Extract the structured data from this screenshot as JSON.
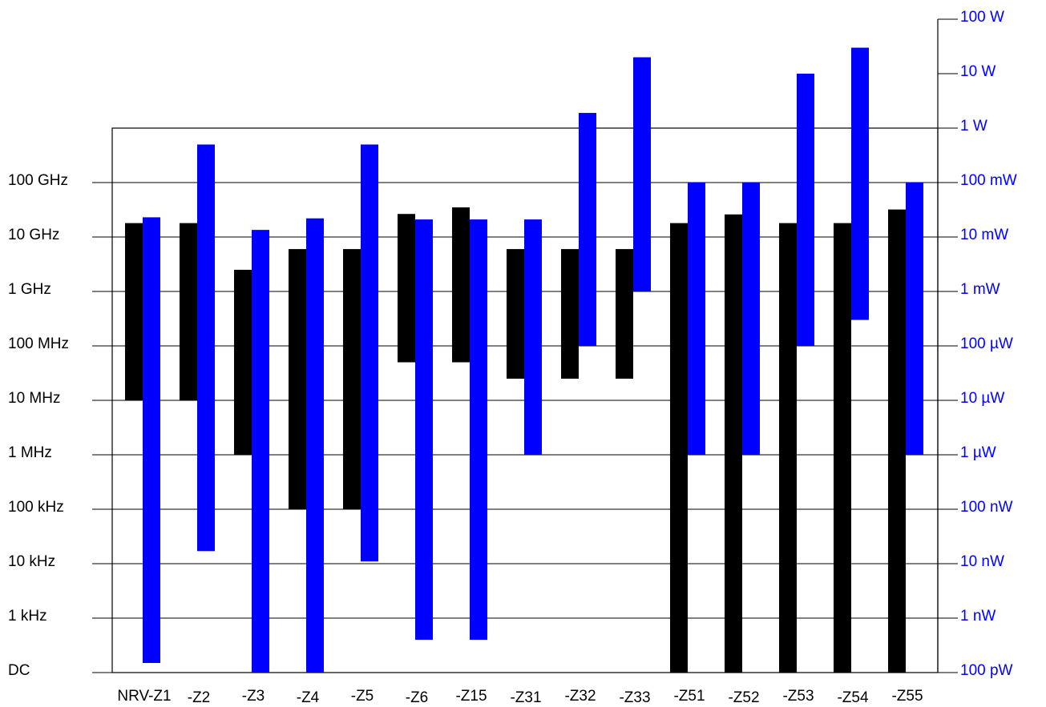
{
  "chart_data": {
    "type": "range-bar",
    "log_scale": true,
    "grid": true,
    "categories": [
      "NRV-Z1",
      "-Z2",
      "-Z3",
      "-Z4",
      "-Z5",
      "-Z6",
      "-Z15",
      "-Z31",
      "-Z32",
      "-Z33",
      "-Z51",
      "-Z52",
      "-Z53",
      "-Z54",
      "-Z55"
    ],
    "series": [
      {
        "color": "#000000",
        "values": [
          [
            10000000.0,
            18000000000.0
          ],
          [
            10000000.0,
            18000000000.0
          ],
          [
            1000000.0,
            2500000000.0
          ],
          [
            100000.0,
            6000000000.0
          ],
          [
            100000.0,
            6000000000.0
          ],
          [
            50000000.0,
            26500000000.0
          ],
          [
            50000000.0,
            35000000000.0
          ],
          [
            25000000.0,
            6000000000.0
          ],
          [
            25000000.0,
            6000000000.0
          ],
          [
            25000000.0,
            6000000000.0
          ],
          [
            100,
            18000000000.0
          ],
          [
            100,
            26000000000.0
          ],
          [
            100,
            18000000000.0
          ],
          [
            100,
            18000000000.0
          ],
          [
            100,
            32000000000.0
          ]
        ]
      },
      {
        "color": "#0000ff",
        "axis": "y2",
        "values": [
          [
            1.5e-10,
            0.023
          ],
          [
            1.7e-08,
            0.5
          ],
          [
            1e-10,
            0.0135
          ],
          [
            1e-10,
            0.022
          ],
          [
            1.1e-08,
            0.5
          ],
          [
            4e-10,
            0.021
          ],
          [
            4e-10,
            0.021
          ],
          [
            1e-06,
            0.021
          ],
          [
            0.0001,
            1.9
          ],
          [
            0.001,
            20
          ],
          [
            1e-06,
            0.1
          ],
          [
            1e-06,
            0.1
          ],
          [
            0.0001,
            10
          ],
          [
            0.0003,
            30
          ],
          [
            1e-06,
            0.1
          ]
        ]
      }
    ],
    "ylim": [
      100,
      1000000000000.0
    ],
    "yticks": [
      {
        "value": 100,
        "label": "DC"
      },
      {
        "value": 1000,
        "label": "1 kHz"
      },
      {
        "value": 10000,
        "label": "10 kHz"
      },
      {
        "value": 100000,
        "label": "100 kHz"
      },
      {
        "value": 1000000,
        "label": "1 MHz"
      },
      {
        "value": 10000000,
        "label": "10 MHz"
      },
      {
        "value": 100000000,
        "label": "100 MHz"
      },
      {
        "value": 1000000000,
        "label": "1 GHz"
      },
      {
        "value": 10000000000,
        "label": "10 GHz"
      },
      {
        "value": 100000000000,
        "label": "100 GHz"
      }
    ],
    "y2lim": [
      1e-10,
      100
    ],
    "y2color": "#0000ff",
    "y2ticks": [
      {
        "value": 1e-10,
        "label": "100 pW"
      },
      {
        "value": 1e-09,
        "label": "1 nW"
      },
      {
        "value": 1e-08,
        "label": "10 nW"
      },
      {
        "value": 1e-07,
        "label": "100 nW"
      },
      {
        "value": 1e-06,
        "label": "1 µW"
      },
      {
        "value": 1e-05,
        "label": "10 µW"
      },
      {
        "value": 0.0001,
        "label": "100 µW"
      },
      {
        "value": 0.001,
        "label": "1 mW"
      },
      {
        "value": 0.01,
        "label": "10 mW"
      },
      {
        "value": 0.1,
        "label": "100 mW"
      },
      {
        "value": 1,
        "label": "1 W"
      },
      {
        "value": 10,
        "label": "10 W"
      },
      {
        "value": 100,
        "label": "100 W"
      }
    ]
  }
}
